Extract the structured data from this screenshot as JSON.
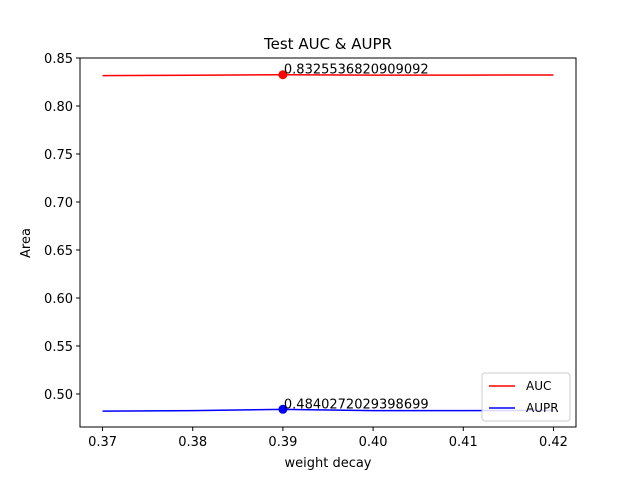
{
  "chart_data": {
    "type": "line",
    "title": "Test AUC & AUPR",
    "xlabel": "weight decay",
    "ylabel": "Area",
    "xlim": [
      0.3675,
      0.4225
    ],
    "ylim": [
      0.4656,
      0.85
    ],
    "xticks": [
      0.37,
      0.38,
      0.39,
      0.4,
      0.41,
      0.42
    ],
    "xtick_labels": [
      "0.37",
      "0.38",
      "0.39",
      "0.40",
      "0.41",
      "0.42"
    ],
    "yticks": [
      0.5,
      0.55,
      0.6,
      0.65,
      0.7,
      0.75,
      0.8,
      0.85
    ],
    "ytick_labels": [
      "0.50",
      "0.55",
      "0.60",
      "0.65",
      "0.70",
      "0.75",
      "0.80",
      "0.85"
    ],
    "grid": false,
    "legend_position": "bottom-right",
    "series": [
      {
        "name": "AUC",
        "color": "#ff0000",
        "x": [
          0.37,
          0.38,
          0.39,
          0.4,
          0.41,
          0.42
        ],
        "y": [
          0.8316,
          0.832,
          0.8326,
          0.8322,
          0.8322,
          0.8323
        ],
        "marker_x": 0.39,
        "marker_y": 0.8325536820909092,
        "annotation": "0.8325536820909092"
      },
      {
        "name": "AUPR",
        "color": "#0000ff",
        "x": [
          0.37,
          0.38,
          0.39,
          0.4,
          0.41,
          0.42
        ],
        "y": [
          0.4822,
          0.4826,
          0.484,
          0.4826,
          0.4826,
          0.483
        ],
        "marker_x": 0.39,
        "marker_y": 0.4840272029398699,
        "annotation": "0.4840272029398699"
      }
    ]
  }
}
